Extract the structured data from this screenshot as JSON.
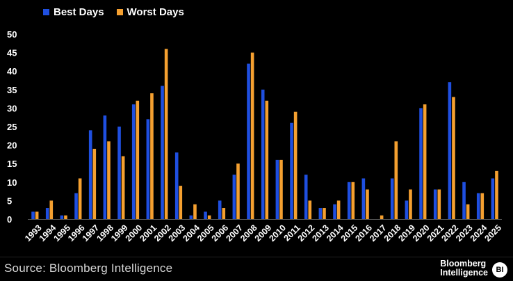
{
  "colors": {
    "best": "#1f4fe0",
    "worst": "#f5a030",
    "background": "#000000"
  },
  "footer": {
    "source": "Source: Bloomberg Intelligence",
    "brand_line1": "Bloomberg",
    "brand_line2": "Intelligence",
    "badge": "BI"
  },
  "chart_data": {
    "type": "bar",
    "title": "",
    "xlabel": "",
    "ylabel": "",
    "ylim": [
      0,
      50
    ],
    "yticks": [
      "0",
      "5",
      "10",
      "15",
      "20",
      "25",
      "30",
      "35",
      "40",
      "45",
      "50"
    ],
    "categories": [
      "1993",
      "1994",
      "1995",
      "1996",
      "1997",
      "1998",
      "1999",
      "2000",
      "2001",
      "2002",
      "2003",
      "2004",
      "2005",
      "2006",
      "2007",
      "2008",
      "2009",
      "2010",
      "2011",
      "2012",
      "2013",
      "2014",
      "2015",
      "2016",
      "2017",
      "2018",
      "2019",
      "2020",
      "2021",
      "2022",
      "2023",
      "2024",
      "2025"
    ],
    "series": [
      {
        "name": "Best Days",
        "values": [
          2,
          3,
          1,
          7,
          24,
          28,
          25,
          31,
          27,
          36,
          18,
          1,
          2,
          5,
          12,
          42,
          35,
          16,
          26,
          12,
          3,
          4,
          10,
          11,
          0,
          11,
          5,
          30,
          8,
          37,
          10,
          7,
          11
        ]
      },
      {
        "name": "Worst Days",
        "values": [
          2,
          5,
          1,
          11,
          19,
          21,
          17,
          32,
          34,
          46,
          9,
          4,
          1,
          3,
          15,
          45,
          32,
          16,
          29,
          5,
          3,
          5,
          10,
          8,
          1,
          21,
          8,
          31,
          8,
          33,
          4,
          7,
          13
        ]
      }
    ]
  }
}
